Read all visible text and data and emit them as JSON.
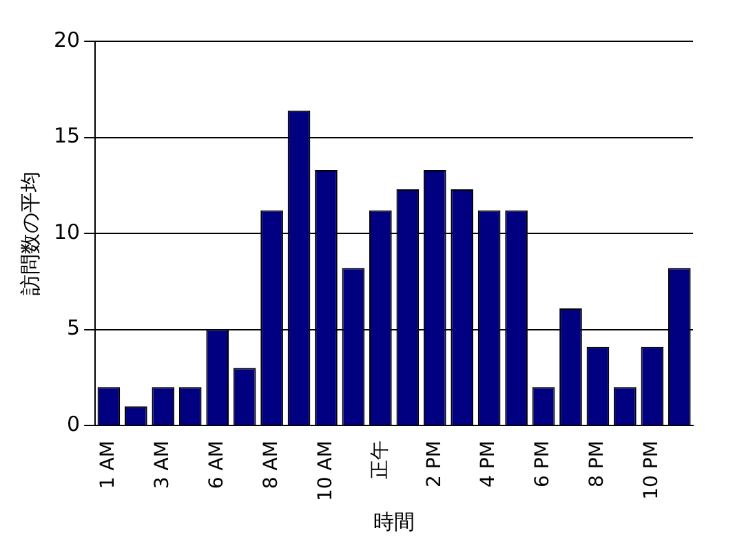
{
  "chart_data": {
    "type": "bar",
    "xlabel": "時間",
    "ylabel": "訪問数の平均",
    "categories": [
      "1 AM",
      null,
      "3 AM",
      null,
      "6 AM",
      null,
      "8 AM",
      null,
      "10 AM",
      null,
      "正午",
      null,
      "2 PM",
      null,
      "4 PM",
      null,
      "6 PM",
      null,
      "8 PM",
      null,
      "10 PM",
      null
    ],
    "values": [
      2,
      1,
      2,
      2,
      5,
      3,
      11.2,
      16.4,
      13.3,
      8.2,
      11.2,
      12.3,
      13.3,
      12.3,
      11.2,
      11.2,
      2,
      6.1,
      4.1,
      2,
      4.1,
      8.2
    ],
    "color": "#000080",
    "ylim": [
      0,
      20
    ],
    "yticks": [
      0,
      5,
      10,
      15,
      20
    ],
    "grid": "y",
    "legend": false
  }
}
